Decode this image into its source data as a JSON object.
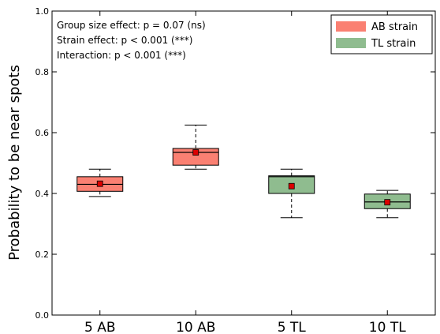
{
  "chart_data": {
    "type": "box",
    "categories": [
      "5 AB",
      "10 AB",
      "5 TL",
      "10 TL"
    ],
    "ylabel": "Probability to be near spots",
    "ylim": [
      0.0,
      1.0
    ],
    "yticks": [
      "0.0",
      "0.2",
      "0.4",
      "0.6",
      "0.8",
      "1.0"
    ],
    "grid": false,
    "legend_position": "top-right",
    "annotations": [
      "Group size effect: p = 0.07 (ns)",
      "Strain effect: p < 0.001 (***)",
      "Interaction: p < 0.001 (***)"
    ],
    "series": [
      {
        "name": "AB strain",
        "color": "#fa8072"
      },
      {
        "name": "TL strain",
        "color": "#8fbc8f"
      }
    ],
    "boxes": [
      {
        "category": "5 AB",
        "series": "AB strain",
        "whisker_low": 0.39,
        "q1": 0.407,
        "median": 0.43,
        "q3": 0.455,
        "whisker_high": 0.48,
        "mean": 0.432
      },
      {
        "category": "10 AB",
        "series": "AB strain",
        "whisker_low": 0.48,
        "q1": 0.493,
        "median": 0.535,
        "q3": 0.548,
        "whisker_high": 0.625,
        "mean": 0.535
      },
      {
        "category": "5 TL",
        "series": "TL strain",
        "whisker_low": 0.32,
        "q1": 0.4,
        "median": 0.455,
        "q3": 0.458,
        "whisker_high": 0.48,
        "mean": 0.424
      },
      {
        "category": "10 TL",
        "series": "TL strain",
        "whisker_low": 0.32,
        "q1": 0.35,
        "median": 0.372,
        "q3": 0.398,
        "whisker_high": 0.41,
        "mean": 0.371
      }
    ],
    "mean_marker_color": "#dd0000"
  }
}
